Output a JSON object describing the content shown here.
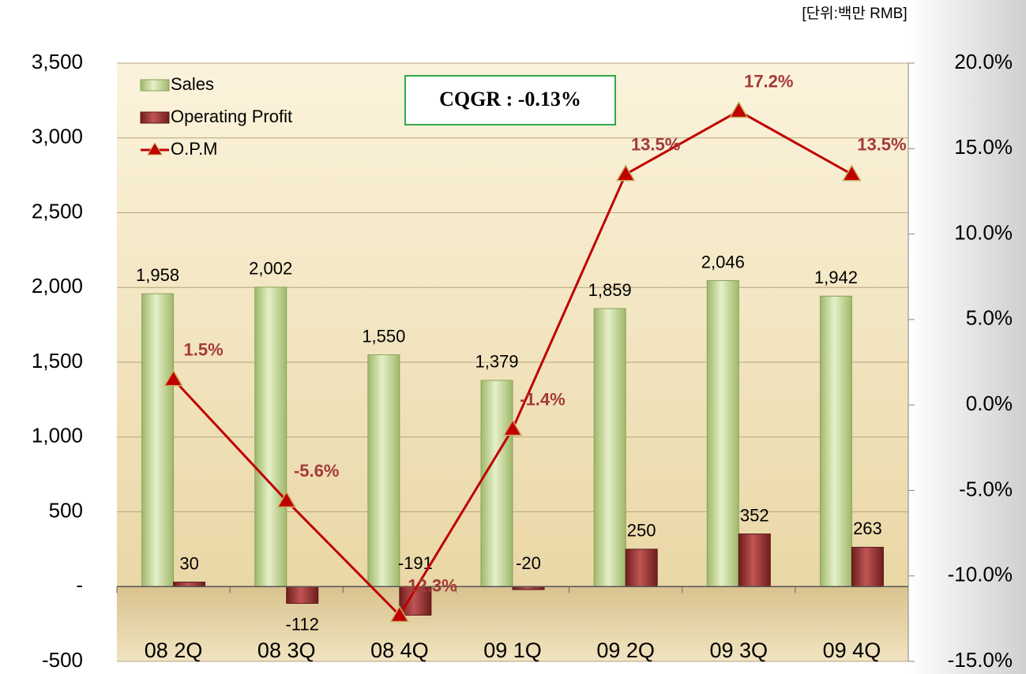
{
  "unit_note": "[단위:백만 RMB]",
  "chart_data": {
    "type": "bar",
    "annotation": "CQGR : -0.13%",
    "categories": [
      "08 2Q",
      "08 3Q",
      "08 4Q",
      "09 1Q",
      "09 2Q",
      "09 3Q",
      "09 4Q"
    ],
    "series": [
      {
        "name": "Sales",
        "color": "#c5d89a",
        "values": [
          1958,
          2002,
          1550,
          1379,
          1859,
          2046,
          1942
        ],
        "value_labels": [
          "1,958",
          "2,002",
          "1,550",
          "1,379",
          "1,859",
          "2,046",
          "1,942"
        ]
      },
      {
        "name": "Operating Profit",
        "color": "#9b3535",
        "values": [
          30,
          -112,
          -191,
          -20,
          250,
          352,
          263
        ]
      },
      {
        "name": "O.P.M",
        "color": "#c00000",
        "axis": "y2",
        "values": [
          1.5,
          -5.6,
          -12.3,
          -1.4,
          13.5,
          17.2,
          13.5
        ],
        "value_labels": [
          "1.5%",
          "-5.6%",
          "-12.3%",
          "-1.4%",
          "13.5%",
          "17.2%",
          "13.5%"
        ]
      }
    ],
    "ylim": [
      -500,
      3500
    ],
    "yticks": [
      {
        "value": -500,
        "label": "-500"
      },
      {
        "value": 0,
        "label": "-"
      },
      500,
      {
        "value": 1000,
        "label": "1,000"
      },
      {
        "value": 1500,
        "label": "1,500"
      },
      {
        "value": 2000,
        "label": "2,000"
      },
      {
        "value": 2500,
        "label": "2,500"
      },
      {
        "value": 3000,
        "label": "3,000"
      },
      {
        "value": 3500,
        "label": "3,500"
      }
    ],
    "y2lim": [
      -15,
      20
    ],
    "y2ticks": [
      {
        "value": -15,
        "label": "-15.0%"
      },
      {
        "value": -10,
        "label": "-10.0%"
      },
      {
        "value": -5,
        "label": "-5.0%"
      },
      {
        "value": 0,
        "label": "0.0%"
      },
      {
        "value": 5,
        "label": "5.0%"
      },
      {
        "value": 10,
        "label": "10.0%"
      },
      {
        "value": 15,
        "label": "15.0%"
      },
      {
        "value": 20,
        "label": "20.0%"
      }
    ],
    "grid": true
  }
}
